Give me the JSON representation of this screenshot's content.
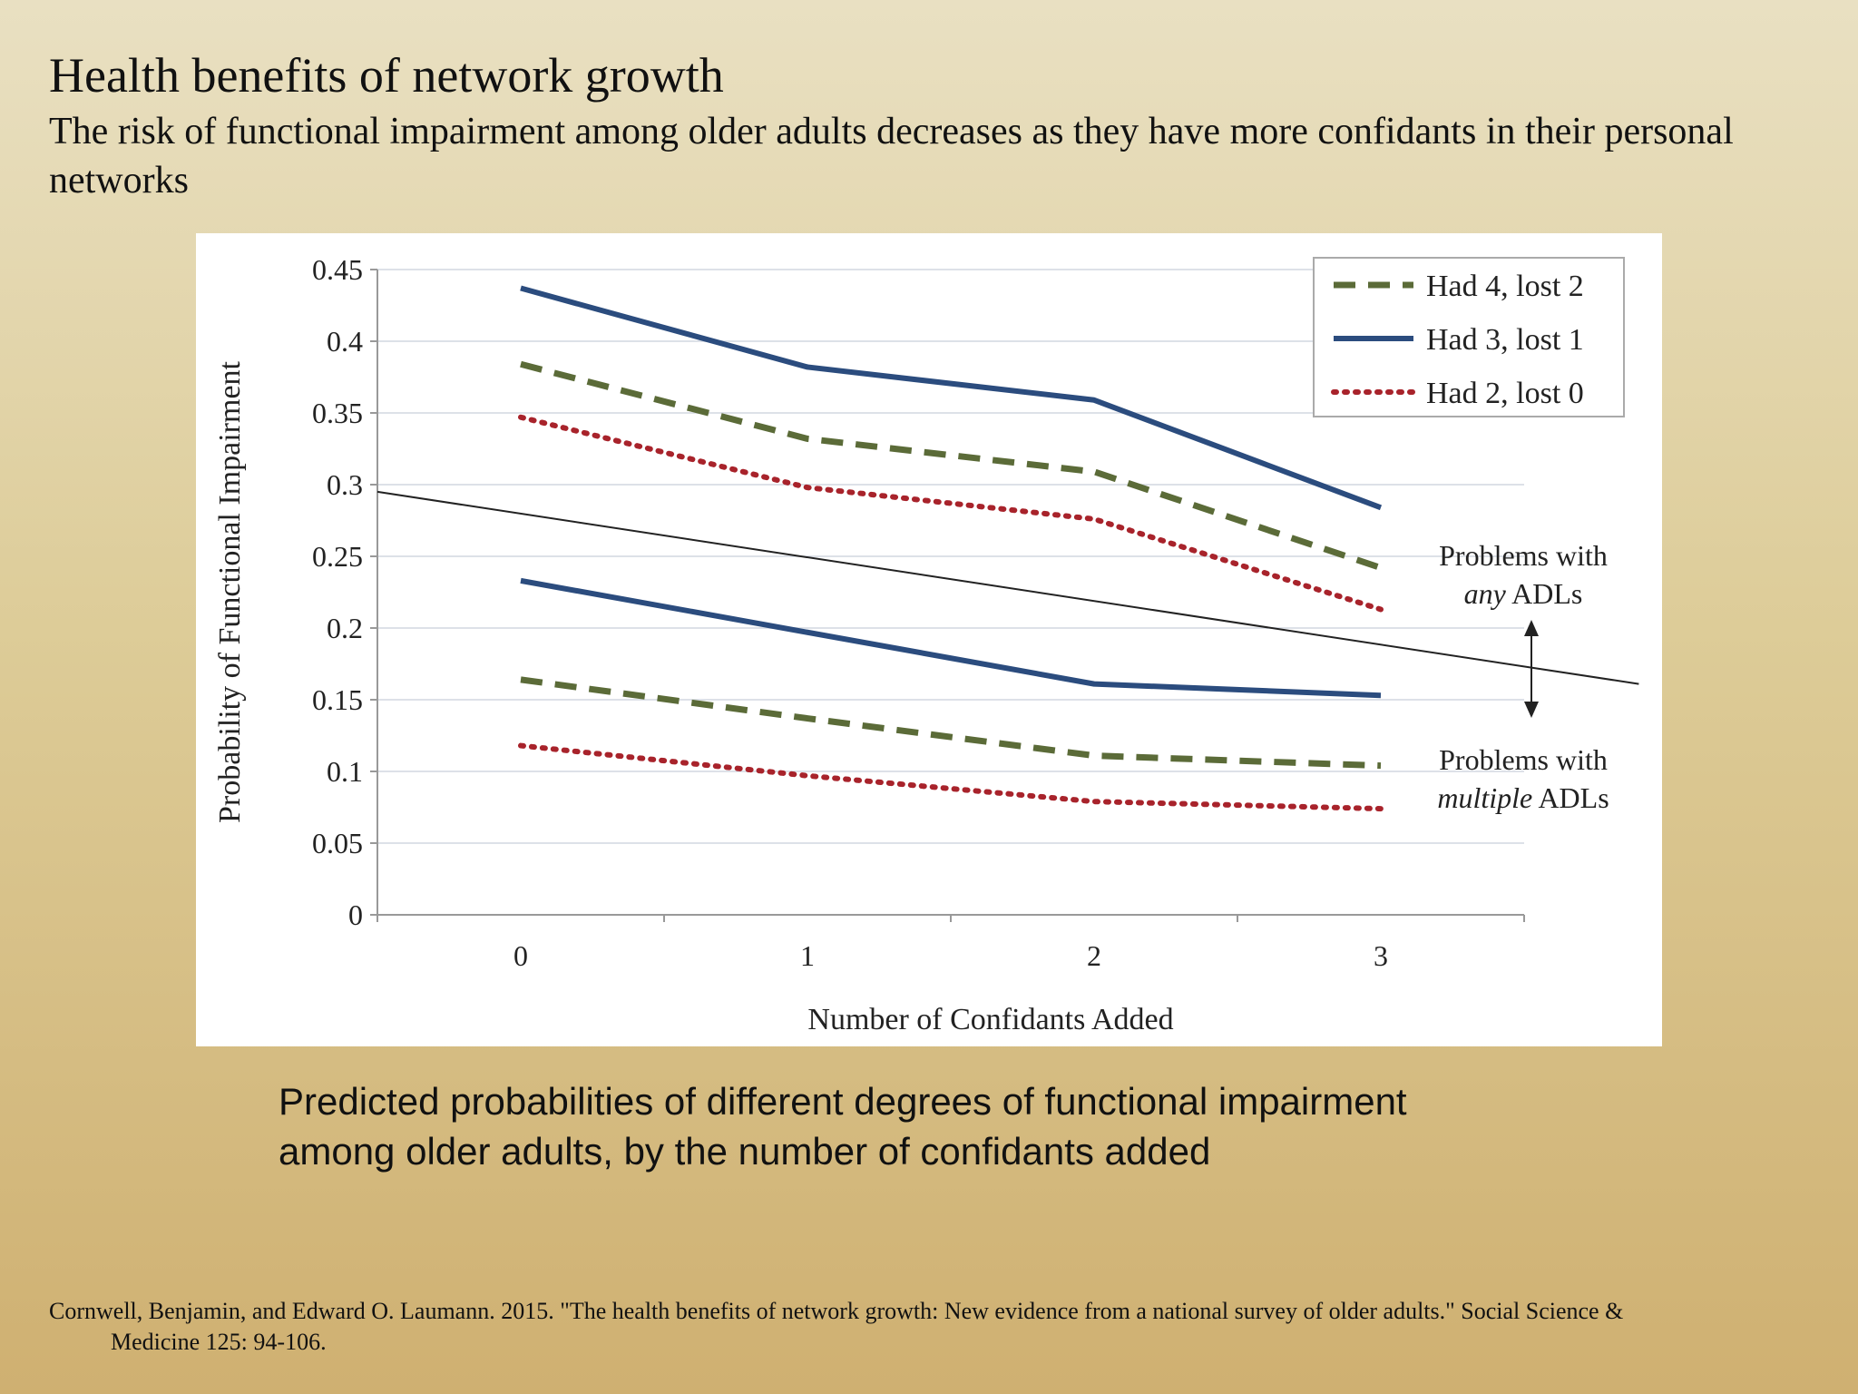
{
  "slide": {
    "title": "Health benefits of network growth",
    "subtitle": "The risk of functional impairment among older adults decreases as they have more confidants in their personal networks"
  },
  "caption": {
    "line1": "Predicted probabilities of different degrees of functional impairment",
    "line2": "among older adults, by the number of confidants added"
  },
  "citation": {
    "line1": "Cornwell, Benjamin, and Edward O. Laumann. 2015. \"The health benefits of network growth: New evidence from a national survey of older adults.\" Social Science &",
    "line2": "Medicine 125: 94-106."
  },
  "chart_data": {
    "type": "line",
    "xlabel": "Number of Confidants  Added",
    "ylabel": "Probability  of Functional  Impairment",
    "x": [
      0,
      1,
      2,
      3
    ],
    "xlim": [
      -0.5,
      3.5
    ],
    "ylim": [
      0,
      0.45
    ],
    "yticks": [
      0,
      0.05,
      0.1,
      0.15,
      0.2,
      0.25,
      0.3,
      0.35,
      0.4,
      0.45
    ],
    "ytick_labels": [
      "0",
      "0.05",
      "0.1",
      "0.15",
      "0.2",
      "0.25",
      "0.3",
      "0.35",
      "0.4",
      "0.45"
    ],
    "grid": "horizontal",
    "legend_position": "top-right",
    "legend": [
      {
        "label": "Had 4, lost 2",
        "style": "dashed",
        "color": "#5b6b38"
      },
      {
        "label": "Had 3, lost 1",
        "style": "solid",
        "color": "#2b4c7e"
      },
      {
        "label": "Had 2, lost 0",
        "style": "dotted",
        "color": "#a8232b"
      }
    ],
    "groups": [
      {
        "label_pre": "Problems with",
        "label_em": "any",
        "label_post": " ADLs",
        "series": [
          {
            "legend": "Had 3, lost 1",
            "style": "solid",
            "color": "#2b4c7e",
            "values": [
              0.437,
              0.382,
              0.359,
              0.284
            ]
          },
          {
            "legend": "Had 4, lost 2",
            "style": "dashed",
            "color": "#5b6b38",
            "values": [
              0.384,
              0.332,
              0.309,
              0.242
            ]
          },
          {
            "legend": "Had 2, lost 0",
            "style": "dotted",
            "color": "#a8232b",
            "values": [
              0.347,
              0.298,
              0.276,
              0.213
            ]
          }
        ]
      },
      {
        "label_pre": "Problems with",
        "label_em": "multiple",
        "label_post": " ADLs",
        "series": [
          {
            "legend": "Had 3, lost 1",
            "style": "solid",
            "color": "#2b4c7e",
            "values": [
              0.233,
              0.197,
              0.161,
              0.153
            ]
          },
          {
            "legend": "Had 4, lost 2",
            "style": "dashed",
            "color": "#5b6b38",
            "values": [
              0.164,
              0.137,
              0.111,
              0.104
            ]
          },
          {
            "legend": "Had 2, lost 0",
            "style": "dotted",
            "color": "#a8232b",
            "values": [
              0.118,
              0.097,
              0.079,
              0.074
            ]
          }
        ]
      }
    ],
    "divider_line": {
      "x": [
        -0.5,
        3.9
      ],
      "y": [
        0.295,
        0.161
      ]
    }
  }
}
